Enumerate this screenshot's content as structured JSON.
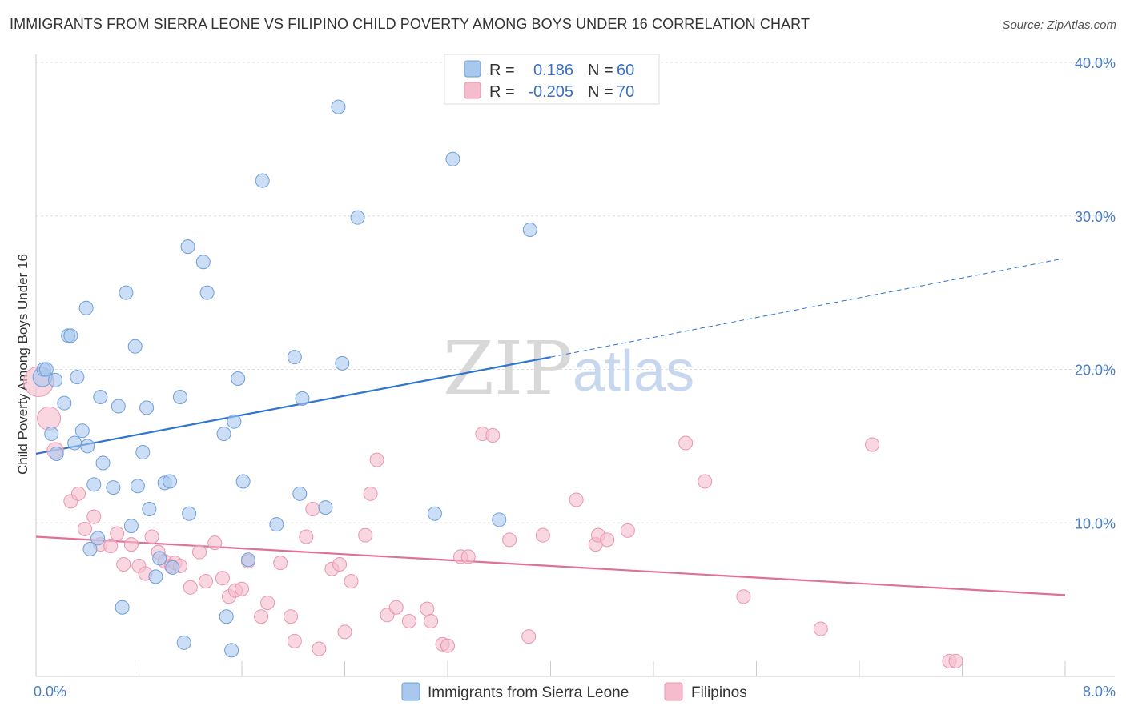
{
  "title": "IMMIGRANTS FROM SIERRA LEONE VS FILIPINO CHILD POVERTY AMONG BOYS UNDER 16 CORRELATION CHART",
  "source": "Source: ZipAtlas.com",
  "watermark": {
    "zip": "ZIP",
    "atlas": "atlas"
  },
  "colors": {
    "blue_fill": "#a9c8ee",
    "blue_stroke": "#6f9ed8",
    "blue_line": "#2f74cf",
    "pink_fill": "#f5bccd",
    "pink_stroke": "#e995b0",
    "pink_line": "#e0709a",
    "axis_text": "#4a7cc7",
    "grid": "#dddddd"
  },
  "legend": {
    "rows": [
      {
        "r_label": "R =",
        "r_value": "0.186",
        "n_label": "N =",
        "n_value": "60"
      },
      {
        "r_label": "R =",
        "r_value": "-0.205",
        "n_label": "N =",
        "n_value": "70"
      }
    ]
  },
  "bottom_legend": {
    "series1": "Immigrants from Sierra Leone",
    "series2": "Filipinos"
  },
  "chart_data": {
    "type": "scatter",
    "title": "IMMIGRANTS FROM SIERRA LEONE VS FILIPINO CHILD POVERTY AMONG BOYS UNDER 16 CORRELATION CHART",
    "xlabel": "",
    "ylabel": "Child Poverty Among Boys Under 16",
    "xlim": [
      0,
      8
    ],
    "ylim": [
      0,
      40
    ],
    "x_tick_labels": [
      "0.0%",
      "8.0%"
    ],
    "y_ticks": [
      10,
      20,
      30,
      40
    ],
    "y_tick_labels": [
      "10.0%",
      "20.0%",
      "30.0%",
      "40.0%"
    ],
    "series": [
      {
        "name": "Immigrants from Sierra Leone",
        "color": "#a9c8ee",
        "r": 0.186,
        "n": 60,
        "trend": {
          "x0": 0,
          "y0": 14.5,
          "x1": 4.0,
          "y1": 20.8,
          "dash_x1": 7.97,
          "dash_y1": 27.2
        },
        "points": [
          [
            0.05,
            19.5,
            1.4
          ],
          [
            0.06,
            20,
            1
          ],
          [
            0.08,
            20,
            1
          ],
          [
            0.15,
            19.3,
            1
          ],
          [
            0.12,
            15.8,
            1
          ],
          [
            0.16,
            14.5,
            1
          ],
          [
            0.22,
            17.8,
            1
          ],
          [
            0.25,
            22.2,
            1
          ],
          [
            0.27,
            22.2,
            1
          ],
          [
            0.3,
            15.2,
            1
          ],
          [
            0.32,
            19.5,
            1
          ],
          [
            0.36,
            16,
            1
          ],
          [
            0.4,
            15,
            1
          ],
          [
            0.39,
            24,
            1
          ],
          [
            0.45,
            12.5,
            1
          ],
          [
            0.48,
            9,
            1
          ],
          [
            0.42,
            8.3,
            1
          ],
          [
            0.5,
            18.2,
            1
          ],
          [
            0.52,
            13.9,
            1
          ],
          [
            0.6,
            12.3,
            1
          ],
          [
            0.64,
            17.6,
            1
          ],
          [
            0.67,
            4.5,
            1
          ],
          [
            0.7,
            25,
            1
          ],
          [
            0.74,
            9.8,
            1
          ],
          [
            0.77,
            21.5,
            1
          ],
          [
            0.79,
            12.4,
            1
          ],
          [
            0.83,
            14.6,
            1
          ],
          [
            0.86,
            17.5,
            1
          ],
          [
            0.88,
            10.9,
            1
          ],
          [
            0.93,
            6.5,
            1
          ],
          [
            0.96,
            7.7,
            1
          ],
          [
            1.0,
            12.6,
            1
          ],
          [
            1.04,
            12.7,
            1
          ],
          [
            1.06,
            7.1,
            1
          ],
          [
            1.12,
            18.2,
            1
          ],
          [
            1.15,
            2.2,
            1
          ],
          [
            1.18,
            28,
            1
          ],
          [
            1.19,
            10.6,
            1
          ],
          [
            1.3,
            27,
            1
          ],
          [
            1.33,
            25,
            1
          ],
          [
            1.46,
            15.8,
            1
          ],
          [
            1.48,
            3.9,
            1
          ],
          [
            1.52,
            1.7,
            1
          ],
          [
            1.54,
            16.6,
            1
          ],
          [
            1.57,
            19.4,
            1
          ],
          [
            1.61,
            12.7,
            1
          ],
          [
            1.65,
            7.6,
            1
          ],
          [
            1.87,
            9.9,
            1
          ],
          [
            1.76,
            32.3,
            1
          ],
          [
            2.01,
            20.8,
            1
          ],
          [
            2.05,
            11.9,
            1
          ],
          [
            2.07,
            18.1,
            1
          ],
          [
            2.25,
            11,
            1
          ],
          [
            2.35,
            37.1,
            1
          ],
          [
            2.38,
            20.4,
            1
          ],
          [
            2.5,
            29.9,
            1
          ],
          [
            3.1,
            10.6,
            1
          ],
          [
            3.24,
            33.7,
            1
          ],
          [
            3.6,
            10.2,
            1
          ],
          [
            3.84,
            29.1,
            1
          ]
        ]
      },
      {
        "name": "Filipinos",
        "color": "#f5bccd",
        "r": -0.205,
        "n": 70,
        "trend": {
          "x0": 0,
          "y0": 9.1,
          "x1": 8.0,
          "y1": 5.3
        },
        "points": [
          [
            0.02,
            19.2,
            2.2
          ],
          [
            0.1,
            16.8,
            1.7
          ],
          [
            0.15,
            14.7,
            1.2
          ],
          [
            0.27,
            11.4,
            1
          ],
          [
            0.33,
            11.9,
            1
          ],
          [
            0.38,
            9.6,
            1
          ],
          [
            0.45,
            10.4,
            1
          ],
          [
            0.5,
            8.6,
            1
          ],
          [
            0.58,
            8.5,
            1
          ],
          [
            0.63,
            9.3,
            1
          ],
          [
            0.68,
            7.3,
            1
          ],
          [
            0.74,
            8.6,
            1
          ],
          [
            0.8,
            7.2,
            1
          ],
          [
            0.85,
            6.7,
            1
          ],
          [
            0.9,
            9.1,
            1
          ],
          [
            0.95,
            8.1,
            1
          ],
          [
            1.0,
            7.5,
            1
          ],
          [
            1.05,
            7.2,
            1
          ],
          [
            1.08,
            7.4,
            1
          ],
          [
            1.12,
            7.2,
            1
          ],
          [
            1.2,
            5.8,
            1
          ],
          [
            1.27,
            8.1,
            1
          ],
          [
            1.32,
            6.2,
            1
          ],
          [
            1.39,
            8.7,
            1
          ],
          [
            1.45,
            6.4,
            1
          ],
          [
            1.5,
            5.2,
            1
          ],
          [
            1.55,
            5.6,
            1
          ],
          [
            1.6,
            5.7,
            1
          ],
          [
            1.65,
            7.5,
            1
          ],
          [
            1.75,
            3.9,
            1
          ],
          [
            1.8,
            4.8,
            1
          ],
          [
            1.9,
            7.4,
            1
          ],
          [
            1.98,
            3.9,
            1
          ],
          [
            2.01,
            2.3,
            1
          ],
          [
            2.1,
            9.1,
            1
          ],
          [
            2.15,
            10.9,
            1
          ],
          [
            2.2,
            1.8,
            1
          ],
          [
            2.3,
            7,
            1
          ],
          [
            2.36,
            7.3,
            1
          ],
          [
            2.4,
            2.9,
            1
          ],
          [
            2.45,
            6.2,
            1
          ],
          [
            2.56,
            9.2,
            1
          ],
          [
            2.6,
            11.9,
            1
          ],
          [
            2.65,
            14.1,
            1
          ],
          [
            2.73,
            4,
            1
          ],
          [
            2.8,
            4.5,
            1
          ],
          [
            2.9,
            3.6,
            1
          ],
          [
            3.04,
            4.4,
            1
          ],
          [
            3.07,
            3.6,
            1
          ],
          [
            3.16,
            2.1,
            1
          ],
          [
            3.2,
            2,
            1
          ],
          [
            3.3,
            7.8,
            1
          ],
          [
            3.36,
            7.8,
            1
          ],
          [
            3.47,
            15.8,
            1
          ],
          [
            3.55,
            15.7,
            1
          ],
          [
            3.68,
            8.9,
            1
          ],
          [
            3.83,
            2.6,
            1
          ],
          [
            3.94,
            9.2,
            1
          ],
          [
            4.2,
            11.5,
            1
          ],
          [
            4.35,
            8.6,
            1
          ],
          [
            4.37,
            9.2,
            1
          ],
          [
            4.44,
            8.9,
            1
          ],
          [
            4.6,
            9.5,
            1
          ],
          [
            5.05,
            15.2,
            1
          ],
          [
            5.2,
            12.7,
            1
          ],
          [
            5.5,
            5.2,
            1
          ],
          [
            6.1,
            3.1,
            1
          ],
          [
            6.5,
            15.1,
            1
          ],
          [
            7.1,
            1,
            1
          ],
          [
            7.15,
            1,
            1
          ]
        ]
      }
    ]
  }
}
